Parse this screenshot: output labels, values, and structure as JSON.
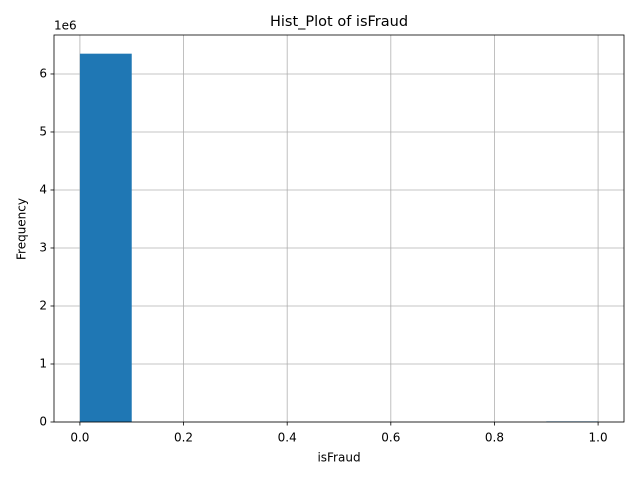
{
  "chart_data": {
    "type": "histogram",
    "title": "Hist_Plot of isFraud",
    "x_label": "isFraud",
    "y_label": "Frequency",
    "bins": [
      0,
      0.1,
      0.2,
      0.3,
      0.4,
      0.5,
      0.6,
      0.7,
      0.8,
      0.9,
      1.0
    ],
    "counts": [
      6350000,
      0,
      0,
      0,
      0,
      0,
      0,
      0,
      0,
      10000
    ],
    "color": "#1f77b4",
    "xlim": [
      -0.05,
      1.05
    ],
    "xticks": [
      {
        "value": 0,
        "label": "0.0"
      },
      0.2,
      0.4,
      0.6,
      0.8,
      {
        "value": 1,
        "label": "1.0"
      }
    ],
    "ylim": [
      0,
      6672000
    ],
    "yticks": [
      {
        "value": 0,
        "label": "0"
      },
      {
        "value": 1000000,
        "label": "1"
      },
      {
        "value": 2000000,
        "label": "2"
      },
      {
        "value": 3000000,
        "label": "3"
      },
      {
        "value": 4000000,
        "label": "4"
      },
      {
        "value": 5000000,
        "label": "5"
      },
      {
        "value": 6000000,
        "label": "6"
      }
    ],
    "y_offset_label": "1e6",
    "grid": true
  }
}
